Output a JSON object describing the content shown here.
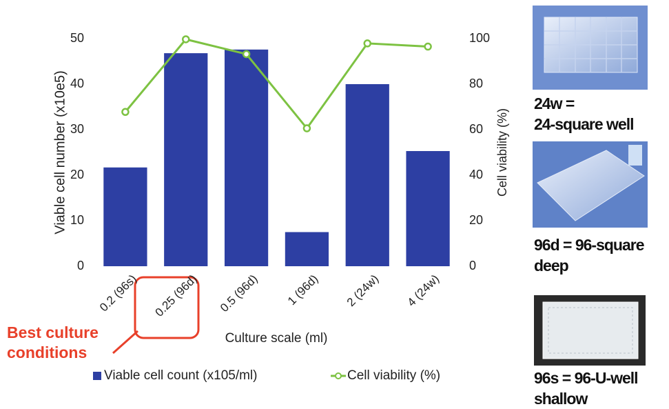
{
  "chart_data": {
    "type": "bar_line",
    "y_label": "Viable cell number (x10e5)",
    "y2_label": "Cell viability (%)",
    "x_label": "Culture scale (ml)",
    "categories": [
      "0.2 (96s)",
      "0.25 (96d)",
      "0.5 (96d)",
      "1 (96d)",
      "2 (24w)",
      "4 (24w)"
    ],
    "series": [
      {
        "name": "Viable cell count (x105/ml)",
        "type": "bar",
        "color": "#2d3fa3",
        "values": [
          21.7,
          46.8,
          47.6,
          7.5,
          40,
          25.3
        ]
      },
      {
        "name": "Cell viability (%)",
        "type": "line",
        "axis": "y2",
        "color": "#7dc242",
        "values": [
          67.8,
          99.7,
          93.2,
          60.6,
          97.9,
          96.5
        ]
      }
    ],
    "ylim": [
      0,
      50
    ],
    "yticks": [
      0,
      10,
      20,
      30,
      40,
      50
    ],
    "y2lim": [
      0,
      100
    ],
    "y2ticks": [
      0,
      20,
      40,
      60,
      80,
      100
    ],
    "grid": false,
    "annotation": "Best culture conditions"
  },
  "panels": [
    {
      "label_lines": [
        "24w =",
        "24-square well"
      ]
    },
    {
      "label_lines": [
        "96d = 96-square",
        "deep"
      ]
    },
    {
      "label_lines": [
        "96s = 96-U-well",
        "shallow"
      ]
    }
  ]
}
